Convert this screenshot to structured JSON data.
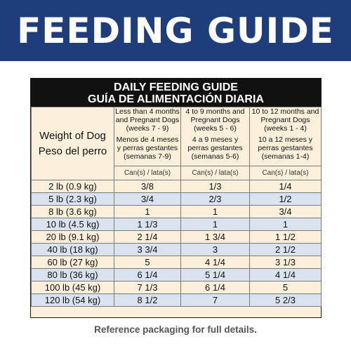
{
  "banner": {
    "title": "FEEDING GUIDE"
  },
  "guide": {
    "title_en": "DAILY FEEDING GUIDE",
    "title_es": "GUÍA DE ALIMENTACIÓN DIARIA",
    "weight_header_en": "Weight of Dog",
    "weight_header_es": "Peso del perro",
    "columns": [
      {
        "en": "Less than 4 months and Pregnant Dogs (weeks 7 - 9)",
        "es": "Menos de 4 meses y perras gestantes (semanas 7-9)",
        "unit": "Can(s) / lata(s)"
      },
      {
        "en": "4 to 9 months and Pregnant Dogs (weeks 5 - 6)",
        "es": "4 a 9 meses y perras gestantes (semanas 5-6)",
        "unit": "Can(s) / lata(s)"
      },
      {
        "en": "10 to 12 months and Pregnant Dogs (weeks 1 - 4)",
        "es": "10 a 12 meses y perras gestantes (semanas 1-4)",
        "unit": "Can(s) / lata(s)"
      }
    ],
    "rows": [
      {
        "weight": "2 lb (0.9 kg)",
        "values": [
          "3/8",
          "1/3",
          "1/4"
        ]
      },
      {
        "weight": "5 lb (2.3 kg)",
        "values": [
          "3/4",
          "2/3",
          "1/2"
        ]
      },
      {
        "weight": "8 lb (3.6 kg)",
        "values": [
          "1",
          "1",
          "3/4"
        ]
      },
      {
        "weight": "10 lb (4.5 kg)",
        "values": [
          "1 1/3",
          "1",
          "1"
        ]
      },
      {
        "weight": "20 lb (9.1 kg)",
        "values": [
          "2 1/4",
          "1 3/4",
          "1 1/2"
        ]
      },
      {
        "weight": "40 lb (18 kg)",
        "values": [
          "3 3/4",
          "3",
          "2 1/2"
        ]
      },
      {
        "weight": "60 lb (27 kg)",
        "values": [
          "5",
          "4 1/4",
          "3 1/3"
        ]
      },
      {
        "weight": "80 lb (36 kg)",
        "values": [
          "6 1/4",
          "5 1/4",
          "4 1/4"
        ]
      },
      {
        "weight": "100 lb (45 kg)",
        "values": [
          "7 1/3",
          "6 1/4",
          "5"
        ]
      },
      {
        "weight": "120 lb (54 kg)",
        "values": [
          "8 1/2",
          "7",
          "5 2/3"
        ]
      }
    ]
  },
  "footnote": "Reference packaging for full details.",
  "colors": {
    "banner": "#1f3d7a",
    "header": "#111111",
    "cream": "#fcf0da",
    "blue_row": "#d9e3ef"
  }
}
